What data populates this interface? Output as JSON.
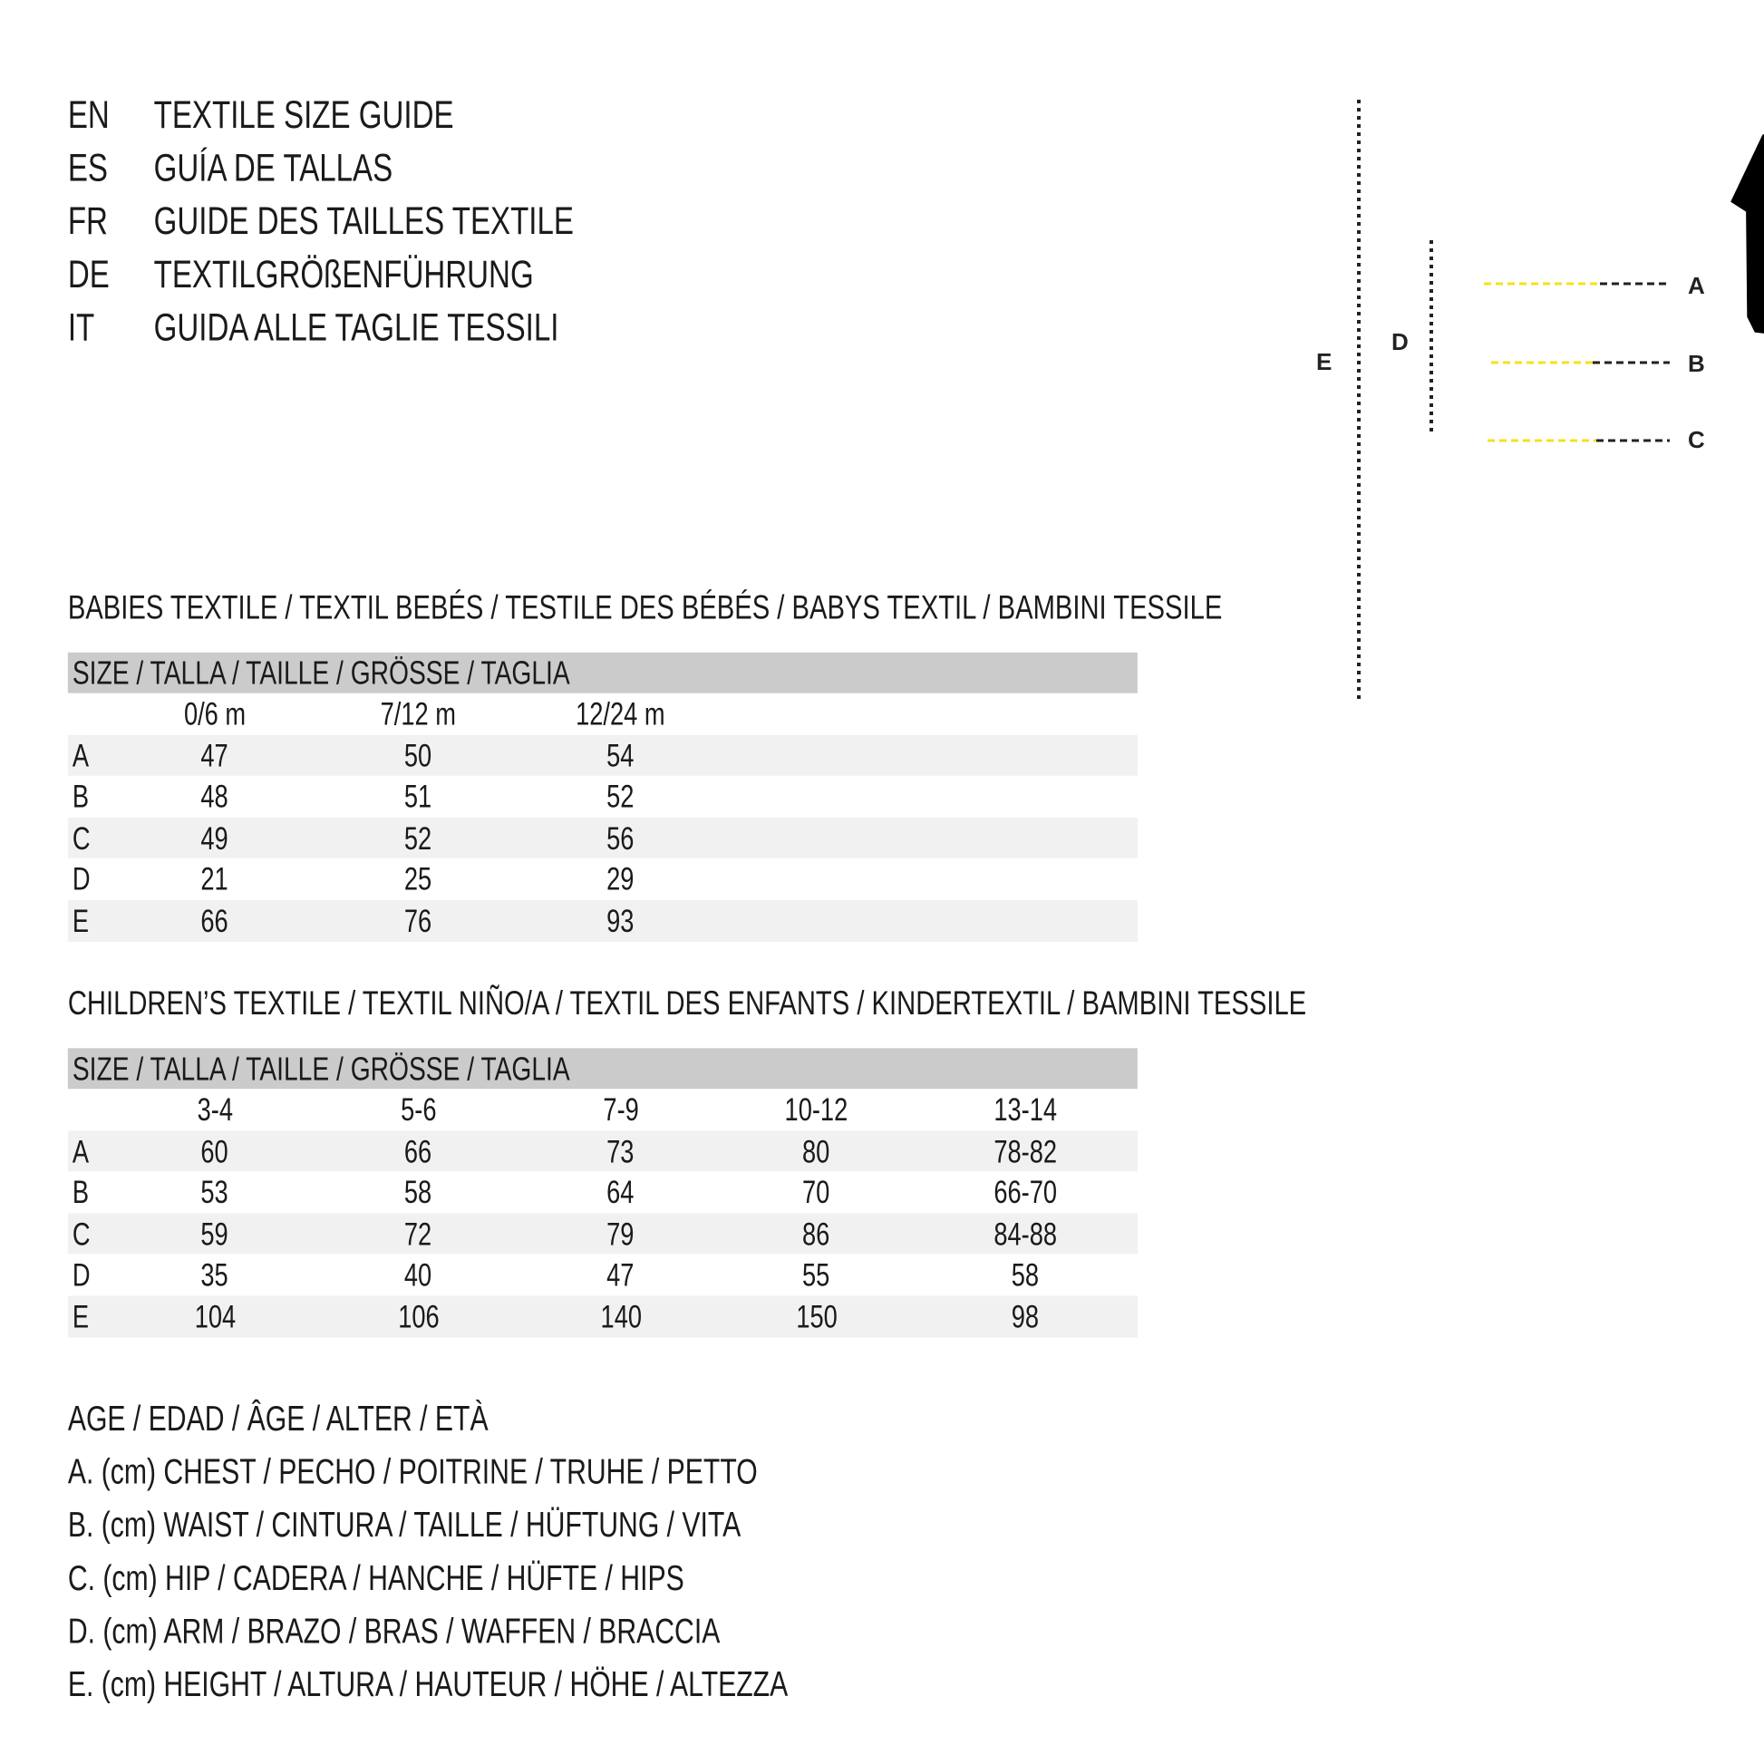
{
  "titles": [
    {
      "code": "EN",
      "text": "TEXTILE SIZE GUIDE"
    },
    {
      "code": "ES",
      "text": "GUÍA DE TALLAS"
    },
    {
      "code": "FR",
      "text": "GUIDE DES TAILLES TEXTILE"
    },
    {
      "code": "DE",
      "text": "TEXTILGRÖßENFÜHRUNG"
    },
    {
      "code": "IT",
      "text": "GUIDA ALLE TAGLIE TESSILI"
    }
  ],
  "figure": {
    "labels": {
      "a": "A",
      "b": "B",
      "c": "C",
      "d": "D",
      "e": "E"
    },
    "colors": {
      "measure_line": "#f5e11a",
      "silhouette": "#000000"
    }
  },
  "babies": {
    "title": "BABIES TEXTILE / TEXTIL BEBÉS / TESTILE DES BÉBÉS / BABYS TEXTIL / BAMBINI TESSILE",
    "header": "SIZE / TALLA / TAILLE / GRÖSSE / TAGLIA",
    "columns": [
      "0/6 m",
      "7/12 m",
      "12/24 m"
    ],
    "rows": [
      {
        "label": "A",
        "values": [
          "47",
          "50",
          "54"
        ]
      },
      {
        "label": "B",
        "values": [
          "48",
          "51",
          "52"
        ]
      },
      {
        "label": "C",
        "values": [
          "49",
          "52",
          "56"
        ]
      },
      {
        "label": "D",
        "values": [
          "21",
          "25",
          "29"
        ]
      },
      {
        "label": "E",
        "values": [
          "66",
          "76",
          "93"
        ]
      }
    ]
  },
  "children": {
    "title": "CHILDREN’S TEXTILE / TEXTIL NIÑO/A / TEXTIL DES ENFANTS / KINDERTEXTIL / BAMBINI TESSILE",
    "header": "SIZE / TALLA / TAILLE / GRÖSSE / TAGLIA",
    "columns": [
      "3-4",
      "5-6",
      "7-9",
      "10-12",
      "13-14"
    ],
    "rows": [
      {
        "label": "A",
        "values": [
          "60",
          "66",
          "73",
          "80",
          "78-82"
        ]
      },
      {
        "label": "B",
        "values": [
          "53",
          "58",
          "64",
          "70",
          "66-70"
        ]
      },
      {
        "label": "C",
        "values": [
          "59",
          "72",
          "79",
          "86",
          "84-88"
        ]
      },
      {
        "label": "D",
        "values": [
          "35",
          "40",
          "47",
          "55",
          "58"
        ]
      },
      {
        "label": "E",
        "values": [
          "104",
          "106",
          "140",
          "150",
          "98"
        ]
      }
    ]
  },
  "legend": [
    "AGE / EDAD / ÂGE / ALTER / ETÀ",
    "A. (cm) CHEST / PECHO / POITRINE / TRUHE / PETTO",
    "B. (cm) WAIST / CINTURA / TAILLE / HÜFTUNG / VITA",
    "C. (cm) HIP / CADERA / HANCHE / HÜFTE / HIPS",
    "D. (cm) ARM / BRAZO / BRAS / WAFFEN / BRACCIA",
    "E. (cm) HEIGHT / ALTURA / HAUTEUR / HÖHE / ALTEZZA"
  ]
}
